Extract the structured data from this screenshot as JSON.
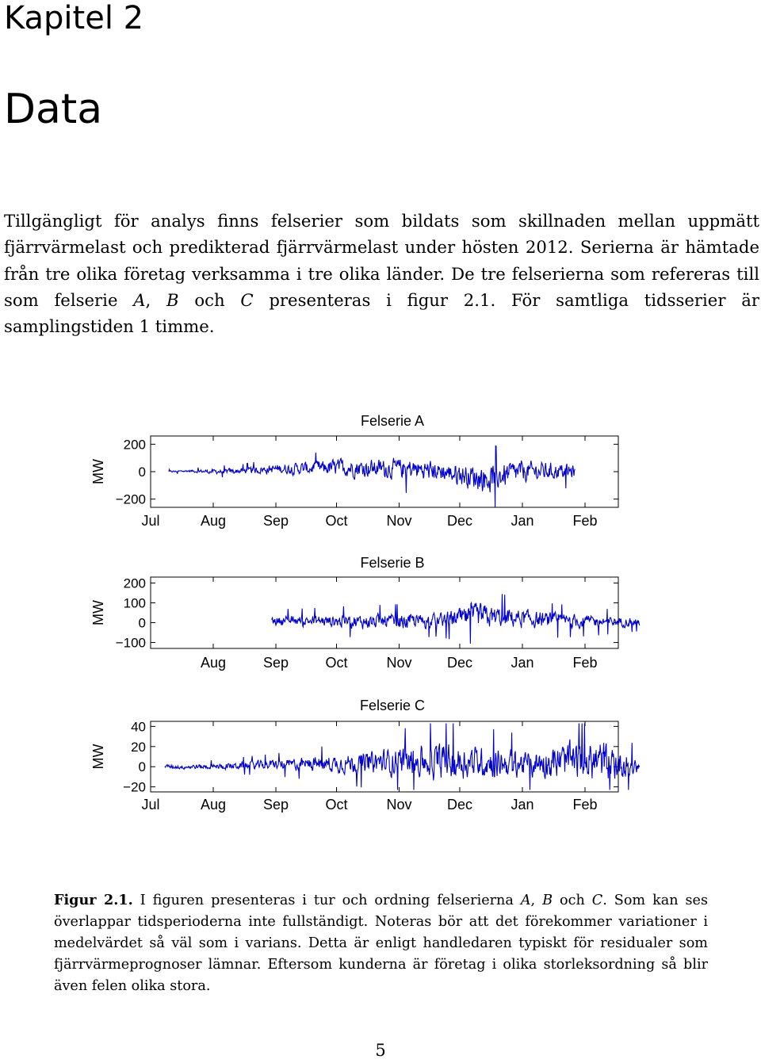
{
  "chapter": "Kapitel 2",
  "title": "Data",
  "paragraph": {
    "before_A": "Tillgängligt för analys finns felserier som bildats som skillnaden mellan uppmätt fjärrvärmelast och predikterad fjärrvärmelast under hösten 2012. Serierna är hämtade från tre olika företag verksamma i tre olika länder. De tre felserierna som refereras till som felserie ",
    "A": "A",
    "comma1": ", ",
    "B": "B",
    "och": " och ",
    "C": "C",
    "after_C": " presenteras i figur 2.1. För samtliga tidsserier är samplingstiden 1 timme."
  },
  "caption": {
    "label": "Figur 2.1.",
    "before_A": " I figuren presenteras i tur och ordning felserierna ",
    "A": "A",
    "comma1": ", ",
    "B": "B",
    "och": " och ",
    "C": "C",
    "after_C": ". Som kan ses överlappar tidsperioderna inte fullständigt. Noteras bör att det förekommer variationer i medelvärdet så väl som i varians. Detta är enligt handledaren typiskt för residualer som fjärrvärmeprognoser lämnar. Eftersom kunderna är företag i olika storleksordning så blir även felen olika stora."
  },
  "page_number": "5",
  "colors": {
    "series": "#0000cc",
    "axis": "#000000"
  },
  "chart_data": [
    {
      "type": "line",
      "title": "Felserie A",
      "ylabel": "MW",
      "xlabel": "",
      "x_ticks": [
        "Jul",
        "Aug",
        "Sep",
        "Oct",
        "Nov",
        "Dec",
        "Jan",
        "Feb"
      ],
      "y_ticks": [
        200,
        0,
        -200
      ],
      "y_tick_labels": [
        "200",
        "0",
        "−200"
      ],
      "ylim": [
        -260,
        260
      ],
      "series": [
        {
          "x_start": "Jul 10",
          "x_end": "Jan 27",
          "envelope": [
            {
              "x": "Jul 10",
              "mean": 0,
              "amp": 10
            },
            {
              "x": "Jul 20",
              "mean": 5,
              "amp": 12
            },
            {
              "x": "Aug 1",
              "mean": 0,
              "amp": 25
            },
            {
              "x": "Aug 15",
              "mean": 5,
              "amp": 30
            },
            {
              "x": "Sep 1",
              "mean": 20,
              "amp": 50
            },
            {
              "x": "Sep 20",
              "mean": 25,
              "amp": 70
            },
            {
              "x": "Oct 5",
              "mean": 30,
              "amp": 95
            },
            {
              "x": "Oct 20",
              "mean": 25,
              "amp": 95
            },
            {
              "x": "Nov 5",
              "mean": 20,
              "amp": 110
            },
            {
              "x": "Nov 20",
              "mean": 5,
              "amp": 100
            },
            {
              "x": "Dec 5",
              "mean": -30,
              "amp": 120
            },
            {
              "x": "Dec 15",
              "mean": -50,
              "amp": 150
            },
            {
              "x": "Jan 1",
              "mean": 0,
              "amp": 110
            },
            {
              "x": "Jan 15",
              "mean": 5,
              "amp": 90
            },
            {
              "x": "Jan 27",
              "mean": 0,
              "amp": 70
            }
          ]
        }
      ]
    },
    {
      "type": "line",
      "title": "Felserie B",
      "ylabel": "MW",
      "xlabel": "",
      "x_ticks": [
        "Aug",
        "Sep",
        "Oct",
        "Nov",
        "Dec",
        "Jan",
        "Feb"
      ],
      "y_ticks": [
        200,
        100,
        0,
        -100
      ],
      "y_tick_labels": [
        "200",
        "100",
        "0",
        "−100"
      ],
      "ylim": [
        -130,
        230
      ],
      "series": [
        {
          "x_start": "Aug 30",
          "x_end": "Feb 28",
          "envelope": [
            {
              "x": "Aug 30",
              "mean": 10,
              "amp": 35
            },
            {
              "x": "Sep 20",
              "mean": 10,
              "amp": 40
            },
            {
              "x": "Oct 10",
              "mean": 5,
              "amp": 50
            },
            {
              "x": "Nov 1",
              "mean": 5,
              "amp": 55
            },
            {
              "x": "Nov 20",
              "mean": 10,
              "amp": 50
            },
            {
              "x": "Dec 10",
              "mean": 30,
              "amp": 90
            },
            {
              "x": "Dec 25",
              "mean": 25,
              "amp": 70
            },
            {
              "x": "Jan 15",
              "mean": 10,
              "amp": 55
            },
            {
              "x": "Feb 5",
              "mean": 5,
              "amp": 45
            },
            {
              "x": "Feb 28",
              "mean": 5,
              "amp": 30
            }
          ]
        }
      ]
    },
    {
      "type": "line",
      "title": "Felserie C",
      "ylabel": "MW",
      "xlabel": "",
      "x_ticks": [
        "Jul",
        "Aug",
        "Sep",
        "Oct",
        "Nov",
        "Dec",
        "Jan",
        "Feb"
      ],
      "y_ticks": [
        40,
        20,
        0,
        -20
      ],
      "y_tick_labels": [
        "40",
        "20",
        "0",
        "−20"
      ],
      "ylim": [
        -25,
        45
      ],
      "series": [
        {
          "x_start": "Jul 8",
          "x_end": "Feb 28",
          "envelope": [
            {
              "x": "Jul 8",
              "mean": 0,
              "amp": 3
            },
            {
              "x": "Aug 1",
              "mean": 0,
              "amp": 4
            },
            {
              "x": "Sep 1",
              "mean": 2,
              "amp": 7
            },
            {
              "x": "Oct 1",
              "mean": 3,
              "amp": 12
            },
            {
              "x": "Nov 1",
              "mean": 5,
              "amp": 20
            },
            {
              "x": "Nov 20",
              "mean": 5,
              "amp": 25
            },
            {
              "x": "Dec 10",
              "mean": 5,
              "amp": 22
            },
            {
              "x": "Jan 1",
              "mean": 3,
              "amp": 18
            },
            {
              "x": "Jan 20",
              "mean": 5,
              "amp": 25
            },
            {
              "x": "Feb 10",
              "mean": 5,
              "amp": 30
            },
            {
              "x": "Feb 28",
              "mean": 0,
              "amp": 10
            }
          ]
        }
      ]
    }
  ]
}
